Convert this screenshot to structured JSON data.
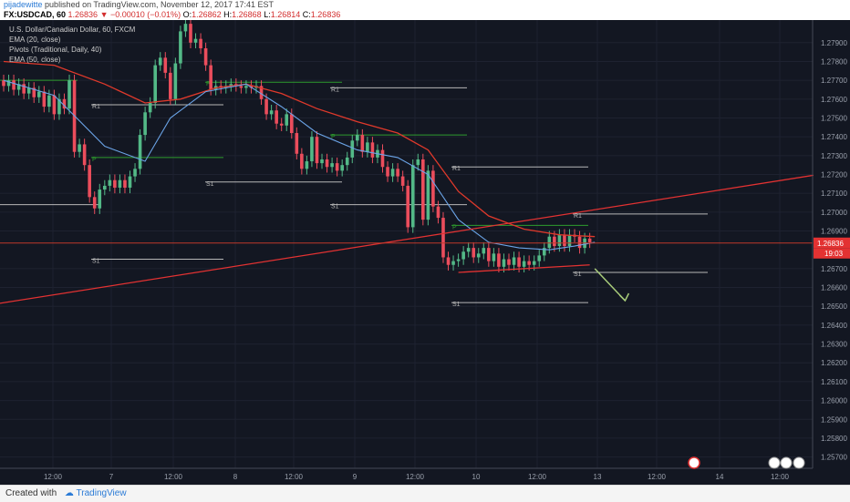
{
  "header": {
    "author": "pijadewitte",
    "published": "published on TradingView.com, November 12, 2017 17:41 EST",
    "symbol": "FX:USDCAD, 60",
    "last": "1.26836",
    "change": "▼ −0.00010 (−0.01%)",
    "o_label": "O:",
    "o": "1.26862",
    "h_label": "H:",
    "h": "1.26868",
    "l_label": "L:",
    "l": "1.26814",
    "c_label": "C:",
    "c": "1.26836"
  },
  "legend": [
    "U.S. Dollar/Canadian Dollar, 60, FXCM",
    "EMA (20, close)",
    "Pivots (Traditional, Daily, 40)",
    "EMA (50, close)"
  ],
  "footer": {
    "created": "Created with",
    "brand": "TradingView"
  },
  "colors": {
    "bg": "#131722",
    "up": "#53b987",
    "down": "#eb4d5c",
    "ema20": "#6ba4e7",
    "ema50": "#e0392b",
    "pivotP": "#2e9c2e",
    "level": "#b7b7b7",
    "trend": "#e33232",
    "arrow": "#a8cc7a",
    "grid": "#1e2230",
    "text": "#9aa0ac"
  },
  "chart_data": {
    "type": "candlestick",
    "y_range": [
      1.2564,
      1.2802
    ],
    "y_ticks": [
      "1.27900",
      "1.27800",
      "1.27700",
      "1.27600",
      "1.27500",
      "1.27400",
      "1.27300",
      "1.27200",
      "1.27100",
      "1.27000",
      "1.26900",
      "1.26700",
      "1.26600",
      "1.26500",
      "1.26400",
      "1.26300",
      "1.26200",
      "1.26100",
      "1.26000",
      "1.25900",
      "1.25800",
      "1.25700"
    ],
    "current_price": "1.26836",
    "countdown": "19:03",
    "x_ticks": [
      "12:00",
      "7",
      "12:00",
      "8",
      "12:00",
      "9",
      "12:00",
      "10",
      "12:00",
      "13",
      "12:00",
      "14",
      "12:00"
    ],
    "pivot_labels": [
      {
        "label": "R1",
        "session": 0,
        "value": 1.2757
      },
      {
        "label": "P",
        "session": 0,
        "value": 1.2729
      },
      {
        "label": "S1",
        "session": 0,
        "value": 1.2675
      },
      {
        "label": "P",
        "session": 1,
        "value": 1.2769
      },
      {
        "label": "S1",
        "session": 1,
        "value": 1.2716
      },
      {
        "label": "R1",
        "session": 2,
        "value": 1.2766
      },
      {
        "label": "P",
        "session": 2,
        "value": 1.2741
      },
      {
        "label": "S1",
        "session": 2,
        "value": 1.2704
      },
      {
        "label": "R1",
        "session": 3,
        "value": 1.2724
      },
      {
        "label": "P",
        "session": 3,
        "value": 1.2693
      },
      {
        "label": "S1",
        "session": 3,
        "value": 1.2652
      },
      {
        "label": "R1",
        "session": 4,
        "value": 1.2699
      },
      {
        "label": "S1",
        "session": 4,
        "value": 1.2668
      }
    ],
    "candles": [
      [
        1.277,
        1.2767
      ],
      [
        1.2767,
        1.277
      ],
      [
        1.277,
        1.2765
      ],
      [
        1.2765,
        1.2768
      ],
      [
        1.2768,
        1.2763
      ],
      [
        1.2763,
        1.2766
      ],
      [
        1.2766,
        1.2761
      ],
      [
        1.2761,
        1.2764
      ],
      [
        1.2764,
        1.2756
      ],
      [
        1.2756,
        1.2762
      ],
      [
        1.2762,
        1.2752
      ],
      [
        1.2752,
        1.276
      ],
      [
        1.276,
        1.2755
      ],
      [
        1.2755,
        1.277
      ],
      [
        1.277,
        1.2732
      ],
      [
        1.2732,
        1.2736
      ],
      [
        1.2736,
        1.2725
      ],
      [
        1.2725,
        1.2708
      ],
      [
        1.2708,
        1.2702
      ],
      [
        1.2702,
        1.2712
      ],
      [
        1.2712,
        1.2714
      ],
      [
        1.2714,
        1.2717
      ],
      [
        1.2717,
        1.2713
      ],
      [
        1.2713,
        1.2717
      ],
      [
        1.2717,
        1.2713
      ],
      [
        1.2713,
        1.2719
      ],
      [
        1.2719,
        1.2723
      ],
      [
        1.2723,
        1.2741
      ],
      [
        1.2741,
        1.2753
      ],
      [
        1.2753,
        1.2758
      ],
      [
        1.2758,
        1.2778
      ],
      [
        1.2778,
        1.2782
      ],
      [
        1.2782,
        1.2774
      ],
      [
        1.2774,
        1.276
      ],
      [
        1.276,
        1.2779
      ],
      [
        1.2779,
        1.2796
      ],
      [
        1.2796,
        1.28
      ],
      [
        1.28,
        1.279
      ],
      [
        1.279,
        1.2792
      ],
      [
        1.2792,
        1.2787
      ],
      [
        1.2787,
        1.2778
      ],
      [
        1.2778,
        1.2765
      ],
      [
        1.2765,
        1.2767
      ],
      [
        1.2767,
        1.2766
      ],
      [
        1.2766,
        1.2767
      ],
      [
        1.2767,
        1.2768
      ],
      [
        1.2768,
        1.2767
      ],
      [
        1.2767,
        1.2766
      ],
      [
        1.2766,
        1.2767
      ],
      [
        1.2767,
        1.2766
      ],
      [
        1.2766,
        1.2767
      ],
      [
        1.2767,
        1.276
      ],
      [
        1.276,
        1.2752
      ],
      [
        1.2752,
        1.2754
      ],
      [
        1.2754,
        1.2747
      ],
      [
        1.2747,
        1.2746
      ],
      [
        1.2746,
        1.2752
      ],
      [
        1.2752,
        1.2742
      ],
      [
        1.2742,
        1.2731
      ],
      [
        1.2731,
        1.2723
      ],
      [
        1.2723,
        1.2727
      ],
      [
        1.2727,
        1.274
      ],
      [
        1.274,
        1.2726
      ],
      [
        1.2726,
        1.2728
      ],
      [
        1.2728,
        1.2724
      ],
      [
        1.2724,
        1.2726
      ],
      [
        1.2726,
        1.2722
      ],
      [
        1.2722,
        1.2725
      ],
      [
        1.2725,
        1.2729
      ],
      [
        1.2729,
        1.2738
      ],
      [
        1.2738,
        1.2741
      ],
      [
        1.2741,
        1.2732
      ],
      [
        1.2732,
        1.2737
      ],
      [
        1.2737,
        1.2729
      ],
      [
        1.2729,
        1.2733
      ],
      [
        1.2733,
        1.2724
      ],
      [
        1.2724,
        1.2719
      ],
      [
        1.2719,
        1.2723
      ],
      [
        1.2723,
        1.2719
      ],
      [
        1.2719,
        1.2714
      ],
      [
        1.2714,
        1.2692
      ],
      [
        1.2692,
        1.2725
      ],
      [
        1.2725,
        1.2728
      ],
      [
        1.2728,
        1.2696
      ],
      [
        1.2696,
        1.2722
      ],
      [
        1.2722,
        1.2703
      ],
      [
        1.2703,
        1.2697
      ],
      [
        1.2697,
        1.2676
      ],
      [
        1.2676,
        1.2672
      ],
      [
        1.2672,
        1.2674
      ],
      [
        1.2674,
        1.2675
      ],
      [
        1.2675,
        1.2679
      ],
      [
        1.2679,
        1.2681
      ],
      [
        1.2681,
        1.2676
      ],
      [
        1.2676,
        1.2678
      ],
      [
        1.2678,
        1.2681
      ],
      [
        1.2681,
        1.2674
      ],
      [
        1.2674,
        1.2678
      ],
      [
        1.2678,
        1.2671
      ],
      [
        1.2671,
        1.2675
      ],
      [
        1.2675,
        1.2672
      ],
      [
        1.2672,
        1.2676
      ],
      [
        1.2676,
        1.2671
      ],
      [
        1.2671,
        1.2674
      ],
      [
        1.2674,
        1.2672
      ],
      [
        1.2672,
        1.2674
      ],
      [
        1.2674,
        1.2677
      ],
      [
        1.2677,
        1.2681
      ],
      [
        1.2681,
        1.2687
      ],
      [
        1.2687,
        1.2682
      ],
      [
        1.2682,
        1.2688
      ],
      [
        1.2688,
        1.2682
      ],
      [
        1.2682,
        1.2688
      ],
      [
        1.2688,
        1.2687
      ],
      [
        1.2687,
        1.2681
      ],
      [
        1.2681,
        1.2686
      ],
      [
        1.2686,
        1.2684
      ]
    ],
    "ema20": [
      [
        0,
        1.277
      ],
      [
        10,
        1.2762
      ],
      [
        20,
        1.2735
      ],
      [
        28,
        1.2727
      ],
      [
        33,
        1.275
      ],
      [
        40,
        1.2764
      ],
      [
        48,
        1.2768
      ],
      [
        55,
        1.2756
      ],
      [
        62,
        1.2742
      ],
      [
        70,
        1.2733
      ],
      [
        78,
        1.2729
      ],
      [
        84,
        1.272
      ],
      [
        90,
        1.2696
      ],
      [
        96,
        1.2684
      ],
      [
        102,
        1.2681
      ],
      [
        108,
        1.268
      ],
      [
        113,
        1.2682
      ],
      [
        117,
        1.2684
      ]
    ],
    "ema50": [
      [
        0,
        1.278
      ],
      [
        10,
        1.2778
      ],
      [
        20,
        1.2768
      ],
      [
        28,
        1.2758
      ],
      [
        35,
        1.276
      ],
      [
        42,
        1.2766
      ],
      [
        48,
        1.2768
      ],
      [
        55,
        1.2763
      ],
      [
        62,
        1.2755
      ],
      [
        70,
        1.2748
      ],
      [
        78,
        1.2742
      ],
      [
        84,
        1.2733
      ],
      [
        90,
        1.2711
      ],
      [
        96,
        1.2698
      ],
      [
        103,
        1.2691
      ],
      [
        110,
        1.2688
      ],
      [
        117,
        1.2687
      ]
    ],
    "trendlines": [
      {
        "from": [
          -14,
          1.2646
        ],
        "to": [
          185,
          1.273
        ]
      },
      {
        "from": [
          90,
          1.2668
        ],
        "to": [
          116,
          1.2672
        ]
      }
    ],
    "arrow": {
      "from": [
        117,
        1.267
      ],
      "to": [
        123,
        1.2653
      ]
    }
  }
}
